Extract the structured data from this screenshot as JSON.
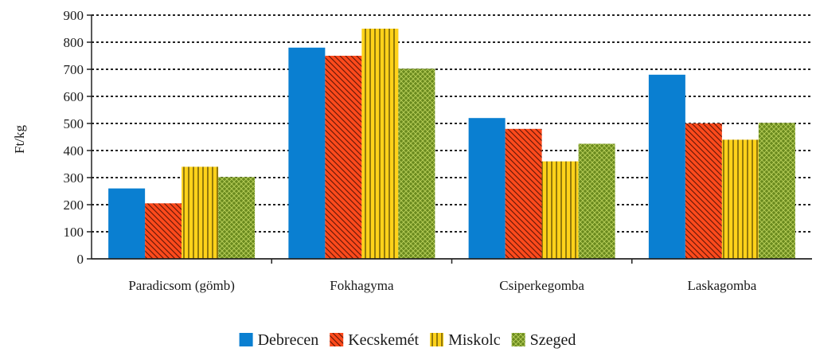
{
  "chart_data": {
    "type": "bar",
    "title": "",
    "xlabel": "",
    "ylabel": "Ft/kg",
    "ylim": [
      0,
      900
    ],
    "yticks": [
      0,
      100,
      200,
      300,
      400,
      500,
      600,
      700,
      800,
      900
    ],
    "grid": true,
    "legend_position": "bottom",
    "categories": [
      "Paradicsom (gömb)",
      "Fokhagyma",
      "Csiperkegomba",
      "Laskagomba"
    ],
    "series": [
      {
        "name": "Debrecen",
        "values": [
          260,
          780,
          520,
          680
        ],
        "color": "#0a7fd1",
        "pattern": "solid"
      },
      {
        "name": "Kecskemét",
        "values": [
          205,
          750,
          480,
          500
        ],
        "color": "#ff4a1c",
        "pattern": "diagonal"
      },
      {
        "name": "Miskolc",
        "values": [
          340,
          850,
          360,
          440
        ],
        "color": "#ffd21a",
        "pattern": "vertical"
      },
      {
        "name": "Szeged",
        "values": [
          302,
          702,
          425,
          502
        ],
        "color": "#6a8a1e",
        "pattern": "crosshatch"
      }
    ]
  }
}
